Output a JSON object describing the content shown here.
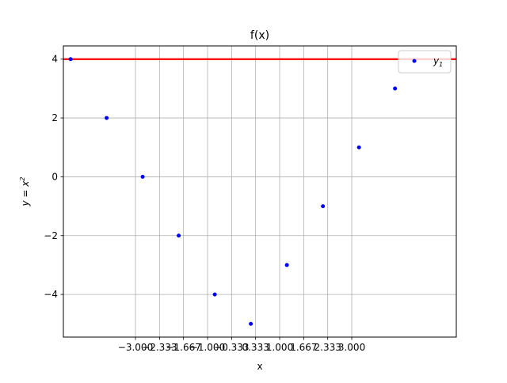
{
  "chart_data": {
    "type": "scatter",
    "title": "f(x)",
    "xlabel": "x",
    "ylabel": "y = x",
    "ylabel_superscript": "2",
    "xlim": [
      -5.0,
      5.9
    ],
    "ylim": [
      -5.45,
      4.45
    ],
    "grid": true,
    "x_ticks": [
      -3.0,
      -2.333,
      -1.667,
      -1.0,
      -0.333,
      0.333,
      1.0,
      1.667,
      2.333,
      3.0
    ],
    "x_tick_labels": [
      "−3.000",
      "−2.333",
      "−1.667",
      "−1.000",
      "−0.333",
      "0.333",
      "1.000",
      "1.667",
      "2.333",
      "3.000"
    ],
    "y_ticks": [
      -4,
      -2,
      0,
      2,
      4
    ],
    "y_tick_labels": [
      "−4",
      "−2",
      "0",
      "2",
      "4"
    ],
    "series": [
      {
        "name": "y",
        "name_subscript": "1",
        "color": "#0000ff",
        "marker": "point",
        "x": [
          -4.8,
          -3.8,
          -2.8,
          -1.8,
          -0.8,
          0.2,
          1.2,
          2.2,
          3.2,
          4.2
        ],
        "y": [
          4,
          2,
          0,
          -2,
          -4,
          -5,
          -3,
          -1,
          1,
          3
        ]
      }
    ],
    "hlines": [
      {
        "y": 4,
        "color": "#ff0000"
      }
    ],
    "legend": {
      "placement": "top-right"
    }
  }
}
